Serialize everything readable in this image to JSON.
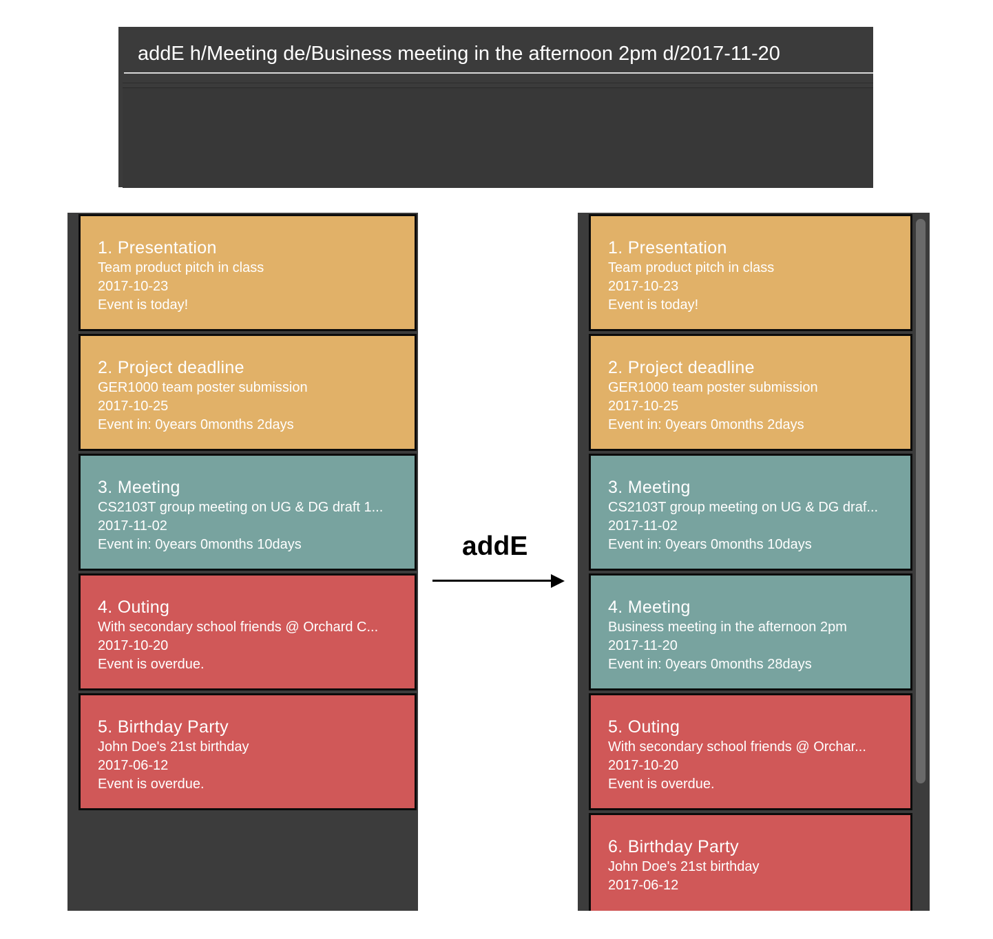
{
  "command": {
    "text": "addE h/Meeting de/Business meeting in the afternoon 2pm d/2017-11-20"
  },
  "arrow_label": "addE",
  "colors": {
    "today": "#e1b168",
    "upcoming": "#e1b168",
    "meeting": "#78a39f",
    "overdue": "#d05858"
  },
  "before_list": [
    {
      "title": "1.  Presentation",
      "description": "Team product pitch in class",
      "date": "2017-10-23",
      "status": "Event is today!",
      "color": "#e1b168"
    },
    {
      "title": "2.  Project deadline",
      "description": "GER1000 team poster submission",
      "date": "2017-10-25",
      "status": "Event in: 0years 0months 2days",
      "color": "#e1b168"
    },
    {
      "title": "3.  Meeting",
      "description": "CS2103T group meeting on UG & DG draft 1...",
      "date": "2017-11-02",
      "status": "Event in: 0years 0months 10days",
      "color": "#78a39f"
    },
    {
      "title": "4.  Outing",
      "description": "With secondary school friends @ Orchard C...",
      "date": "2017-10-20",
      "status": "Event is overdue.",
      "color": "#d05858"
    },
    {
      "title": "5.  Birthday Party",
      "description": "John Doe's 21st birthday",
      "date": "2017-06-12",
      "status": "Event is overdue.",
      "color": "#d05858"
    }
  ],
  "after_list": [
    {
      "title": "1.  Presentation",
      "description": "Team product pitch in class",
      "date": "2017-10-23",
      "status": "Event is today!",
      "color": "#e1b168"
    },
    {
      "title": "2.  Project deadline",
      "description": "GER1000 team poster submission",
      "date": "2017-10-25",
      "status": "Event in: 0years 0months 2days",
      "color": "#e1b168"
    },
    {
      "title": "3.  Meeting",
      "description": "CS2103T group meeting on UG & DG draf...",
      "date": "2017-11-02",
      "status": "Event in: 0years 0months 10days",
      "color": "#78a39f"
    },
    {
      "title": "4.  Meeting",
      "description": "Business meeting in the afternoon 2pm",
      "date": "2017-11-20",
      "status": "Event in: 0years 0months 28days",
      "color": "#78a39f"
    },
    {
      "title": "5.  Outing",
      "description": "With secondary school friends @ Orchar...",
      "date": "2017-10-20",
      "status": "Event is overdue.",
      "color": "#d05858"
    },
    {
      "title": "6.  Birthday Party",
      "description": "John Doe's 21st birthday",
      "date": "2017-06-12",
      "status": "",
      "color": "#d05858"
    }
  ]
}
